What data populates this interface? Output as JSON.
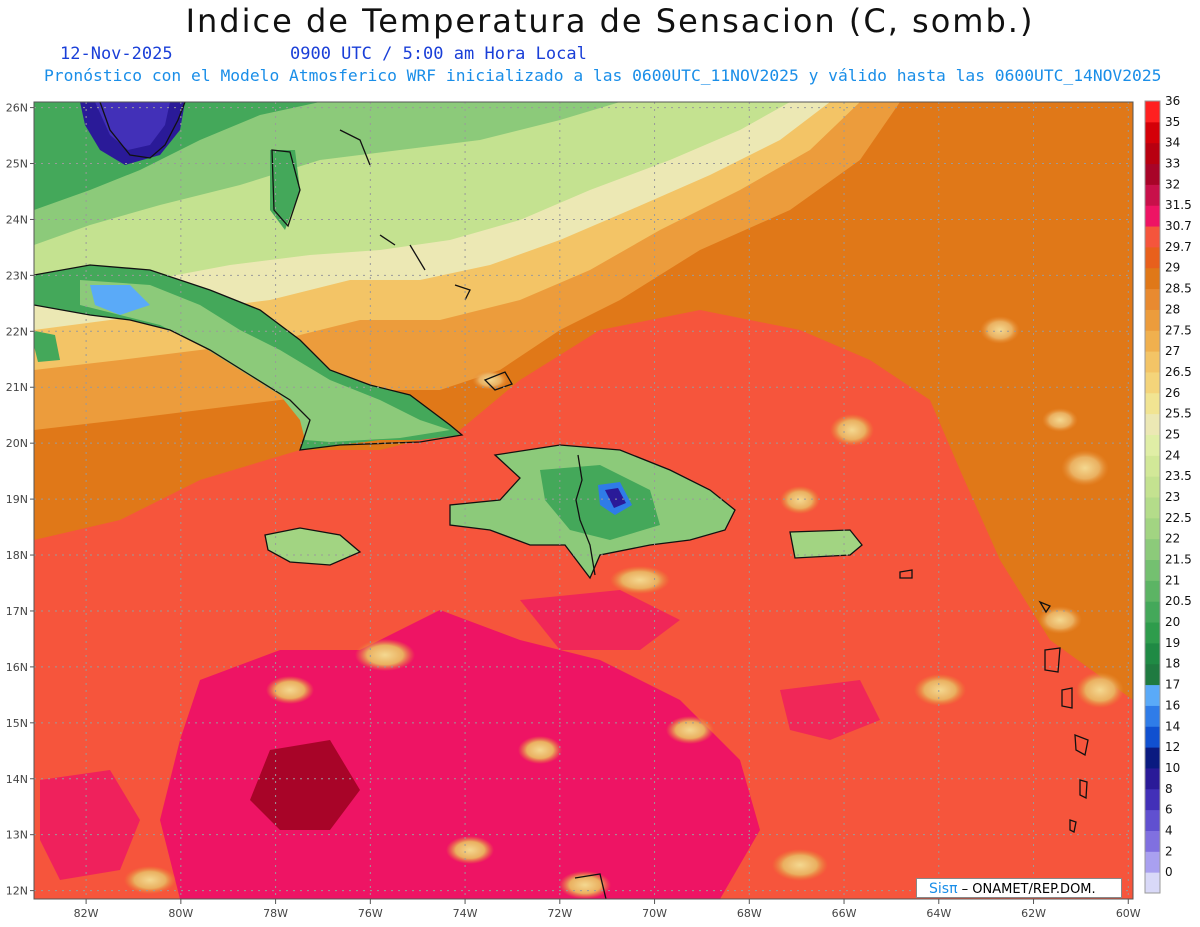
{
  "header": {
    "title": "Indice de Temperatura de Sensacion (C, somb.)",
    "date": "12-Nov-2025",
    "time": "0900 UTC / 5:00 am Hora Local",
    "forecast": "Pronóstico con el Modelo Atmosferico WRF inicializado a las 0600UTC_11NOV2025 y válido hasta las  0600UTC_14NOV2025"
  },
  "map": {
    "lon_range": [
      -83.1,
      -59.9
    ],
    "lat_range": [
      11.85,
      26.1
    ],
    "lon_ticks": [
      "82W",
      "80W",
      "78W",
      "76W",
      "74W",
      "72W",
      "70W",
      "68W",
      "66W",
      "64W",
      "62W",
      "60W"
    ],
    "lat_ticks": [
      "12N",
      "13N",
      "14N",
      "15N",
      "16N",
      "17N",
      "18N",
      "19N",
      "20N",
      "21N",
      "22N",
      "23N",
      "24N",
      "25N",
      "26N"
    ],
    "gridlines": true
  },
  "colorbar": {
    "labels": [
      "0",
      "2",
      "4",
      "6",
      "8",
      "10",
      "12",
      "14",
      "16",
      "17",
      "18",
      "19",
      "20",
      "20.5",
      "21",
      "21.5",
      "22",
      "22.5",
      "23",
      "23.5",
      "24",
      "25",
      "25.5",
      "26",
      "26.5",
      "27",
      "27.5",
      "28",
      "28.5",
      "29",
      "29.7",
      "30.7",
      "31.5",
      "32",
      "33",
      "34",
      "35",
      "36"
    ],
    "colors": [
      "#d9d9f8",
      "#a9a0f0",
      "#8070e0",
      "#6050d0",
      "#4230b8",
      "#2a1a98",
      "#0a1a80",
      "#1050d0",
      "#2f7ce8",
      "#5aaaf8",
      "#1f7a40",
      "#1f8a44",
      "#2e9c4c",
      "#44a85a",
      "#5cb464",
      "#74c070",
      "#8cca7a",
      "#a2d482",
      "#b4dc8a",
      "#c4e290",
      "#d2e898",
      "#e0eea6",
      "#ece8b4",
      "#f1e492",
      "#f4d47a",
      "#f3c466",
      "#f0b04e",
      "#ec9c3c",
      "#e88a30",
      "#e07818",
      "#e8601c",
      "#f5553c",
      "#ee1464",
      "#c8104a",
      "#a80428",
      "#b80010",
      "#d40008",
      "#ff2020"
    ]
  },
  "credit": {
    "logo": "Sisπ",
    "text": " – ONAMET/REP.DOM."
  }
}
